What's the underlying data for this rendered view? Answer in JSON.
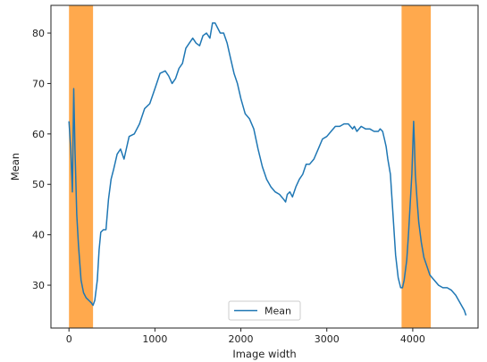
{
  "chart_data": {
    "type": "line",
    "xlabel": "Image width",
    "ylabel": "Mean",
    "xlim": [
      -210,
      4760
    ],
    "ylim": [
      21.5,
      85.5
    ],
    "xticks": [
      0,
      1000,
      2000,
      3000,
      4000
    ],
    "yticks": [
      30,
      40,
      50,
      60,
      70,
      80
    ],
    "grid": false,
    "legend": {
      "position": "bottom-center",
      "entries": [
        "Mean"
      ]
    },
    "colors": {
      "line": "#1f77b4",
      "highlight": "#ffa94d",
      "axes": "#222222"
    },
    "highlight_spans": [
      {
        "x0": 0,
        "x1": 280
      },
      {
        "x0": 3870,
        "x1": 4210
      }
    ],
    "series": [
      {
        "name": "Mean",
        "x": [
          0,
          20,
          40,
          55,
          70,
          90,
          110,
          140,
          170,
          200,
          230,
          260,
          280,
          300,
          330,
          350,
          370,
          400,
          430,
          460,
          490,
          520,
          560,
          600,
          640,
          700,
          760,
          820,
          880,
          940,
          1000,
          1060,
          1120,
          1160,
          1200,
          1240,
          1280,
          1320,
          1360,
          1400,
          1440,
          1480,
          1520,
          1560,
          1600,
          1640,
          1670,
          1700,
          1730,
          1760,
          1800,
          1840,
          1880,
          1920,
          1960,
          2000,
          2050,
          2100,
          2150,
          2200,
          2250,
          2300,
          2350,
          2400,
          2450,
          2500,
          2520,
          2540,
          2570,
          2600,
          2640,
          2680,
          2720,
          2760,
          2800,
          2850,
          2900,
          2950,
          3000,
          3050,
          3100,
          3150,
          3200,
          3250,
          3300,
          3320,
          3350,
          3400,
          3450,
          3500,
          3550,
          3600,
          3620,
          3650,
          3670,
          3690,
          3710,
          3740,
          3770,
          3800,
          3830,
          3860,
          3880,
          3900,
          3930,
          3950,
          3970,
          3990,
          4010,
          4020,
          4030,
          4050,
          4070,
          4100,
          4130,
          4160,
          4200,
          4250,
          4300,
          4350,
          4400,
          4450,
          4500,
          4550,
          4600,
          4620
        ],
        "y": [
          62.5,
          57,
          48.5,
          69,
          57,
          44,
          38,
          31,
          28.5,
          27.5,
          27,
          26.5,
          26,
          27,
          31,
          37,
          40.5,
          41,
          41,
          47,
          51,
          53,
          56,
          57,
          55,
          59.5,
          60,
          62,
          65,
          66,
          69,
          72,
          72.5,
          71.5,
          70,
          71,
          73,
          74,
          77,
          78,
          79,
          78,
          77.5,
          79.5,
          80,
          79,
          82,
          82,
          81,
          80,
          80,
          78,
          75,
          72,
          70,
          67,
          64,
          63,
          61,
          57,
          53.5,
          51,
          49.5,
          48.5,
          48,
          47,
          46.5,
          48,
          48.5,
          47.5,
          49.5,
          51,
          52,
          54,
          54,
          55,
          57,
          59,
          59.5,
          60.5,
          61.5,
          61.5,
          62,
          62,
          61,
          61.5,
          60.5,
          61.5,
          61,
          61,
          60.5,
          60.5,
          61,
          60.5,
          59,
          57.5,
          55,
          52,
          44,
          36,
          31.5,
          29.5,
          29.5,
          31,
          35,
          40,
          46,
          52,
          62.5,
          58,
          52,
          47,
          42.5,
          38.5,
          35.5,
          34,
          32,
          31,
          30,
          29.5,
          29.5,
          29,
          28,
          26.5,
          25,
          24
        ]
      }
    ]
  }
}
